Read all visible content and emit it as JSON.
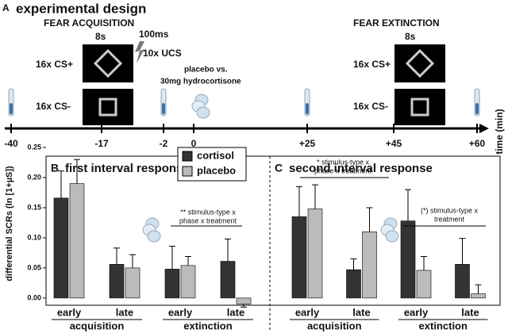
{
  "diagram": {
    "panel": "A",
    "title": "experimental design",
    "acquisition": {
      "title": "FEAR ACQUISITION",
      "duration": "8s",
      "ucs_duration": "100ms",
      "ucs": "10x UCS",
      "cs_plus": "16x CS+",
      "cs_minus": "16x CS-"
    },
    "treatment": [
      "placebo vs.",
      "30mg hydrocortisone"
    ],
    "extinction": {
      "title": "FEAR EXTINCTION",
      "duration": "8s",
      "cs_plus": "16x CS+",
      "cs_minus": "16x CS-"
    },
    "timeline": {
      "label": "time (min)",
      "ticks": [
        "-40",
        "-17",
        "-2",
        "0",
        "+25",
        "+45",
        "+60"
      ]
    }
  },
  "chart_data": [
    {
      "type": "bar",
      "panel": "B",
      "title": "first interval response",
      "ylabel": "differential SCRs (ln [1+µS])",
      "categories": [
        "early",
        "late",
        "early",
        "late"
      ],
      "groups": [
        "acquisition",
        "extinction"
      ],
      "series": [
        {
          "name": "cortisol",
          "color": "#333333",
          "values": [
            0.166,
            0.056,
            0.048,
            0.061
          ],
          "error": [
            0.045,
            0.027,
            0.038,
            0.037
          ]
        },
        {
          "name": "placebo",
          "color": "#bbbbbb",
          "values": [
            0.19,
            0.05,
            0.054,
            -0.01
          ],
          "error": [
            0.04,
            0.022,
            0.015,
            0.005
          ]
        }
      ],
      "ylim": [
        -0.012,
        0.25
      ],
      "yticks": [
        {
          "value": 0,
          "label": "0.00"
        },
        {
          "value": 0.05,
          "label": "0.05"
        },
        {
          "value": 0.1,
          "label": "0.10"
        },
        {
          "value": 0.15,
          "label": "0.15"
        },
        {
          "value": 0.2,
          "label": "0.20"
        },
        {
          "value": 0.25,
          "label": "0.25"
        }
      ],
      "annotations": [
        [
          "** stimulus-type x",
          "phase x treatment"
        ]
      ]
    },
    {
      "type": "bar",
      "panel": "C",
      "title": "second interval response",
      "categories": [
        "early",
        "late",
        "early",
        "late"
      ],
      "groups": [
        "acquisition",
        "extinction"
      ],
      "series": [
        {
          "color": "#333333",
          "values": [
            0.135,
            0.047,
            0.128,
            0.056
          ],
          "error": [
            0.05,
            0.018,
            0.052,
            0.043
          ]
        },
        {
          "color": "#bbbbbb",
          "values": [
            0.148,
            0.11,
            0.046,
            0.007
          ],
          "error": [
            0.04,
            0.04,
            0.023,
            0.015
          ]
        }
      ],
      "ylim": [
        -0.012,
        0.25
      ],
      "annotations": [
        [
          "* stimulus-type x",
          "phase x treatment"
        ],
        [
          "(*) stimulus-type x",
          "treatment"
        ]
      ]
    }
  ]
}
